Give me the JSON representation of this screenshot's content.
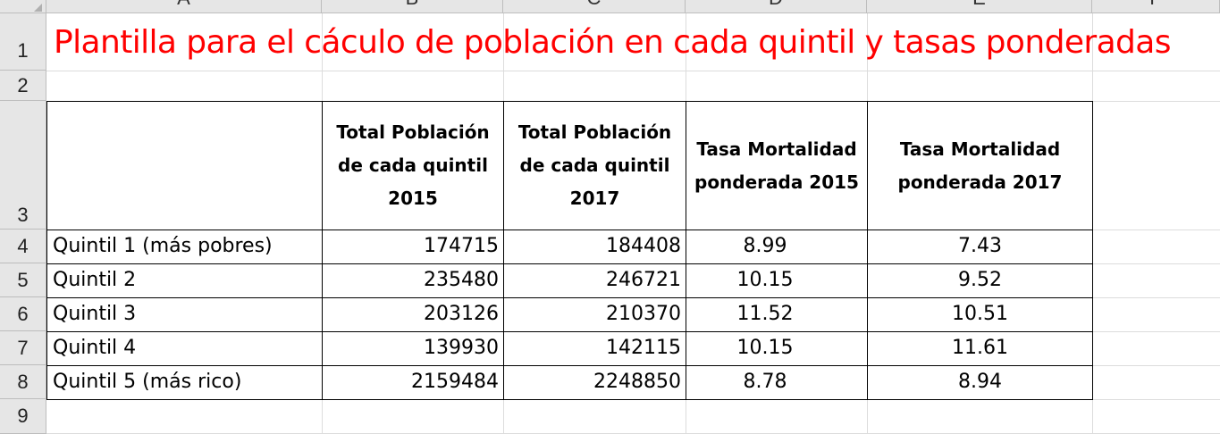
{
  "columns": [
    "A",
    "B",
    "C",
    "D",
    "E",
    "F"
  ],
  "rows": [
    "1",
    "2",
    "3",
    "4",
    "5",
    "6",
    "7",
    "8",
    "9"
  ],
  "title": "Plantilla para el cáculo de población en cada quintil y tasas ponderadas",
  "headers": [
    "",
    "Total Población de cada quintil 2015",
    "Total Población de cada quintil 2017",
    "Tasa Mortalidad ponderada 2015",
    "Tasa Mortalidad ponderada 2017"
  ],
  "data": [
    [
      "Quintil 1 (más pobres)",
      "174715",
      "184408",
      "8.99",
      "7.43"
    ],
    [
      "Quintil 2",
      "235480",
      "246721",
      "10.15",
      "9.52"
    ],
    [
      "Quintil 3",
      "203126",
      "210370",
      "11.52",
      "10.51"
    ],
    [
      "Quintil 4",
      "139930",
      "142115",
      "10.15",
      "11.61"
    ],
    [
      "Quintil 5 (más rico)",
      "2159484",
      "2248850",
      "8.78",
      "8.94"
    ]
  ]
}
